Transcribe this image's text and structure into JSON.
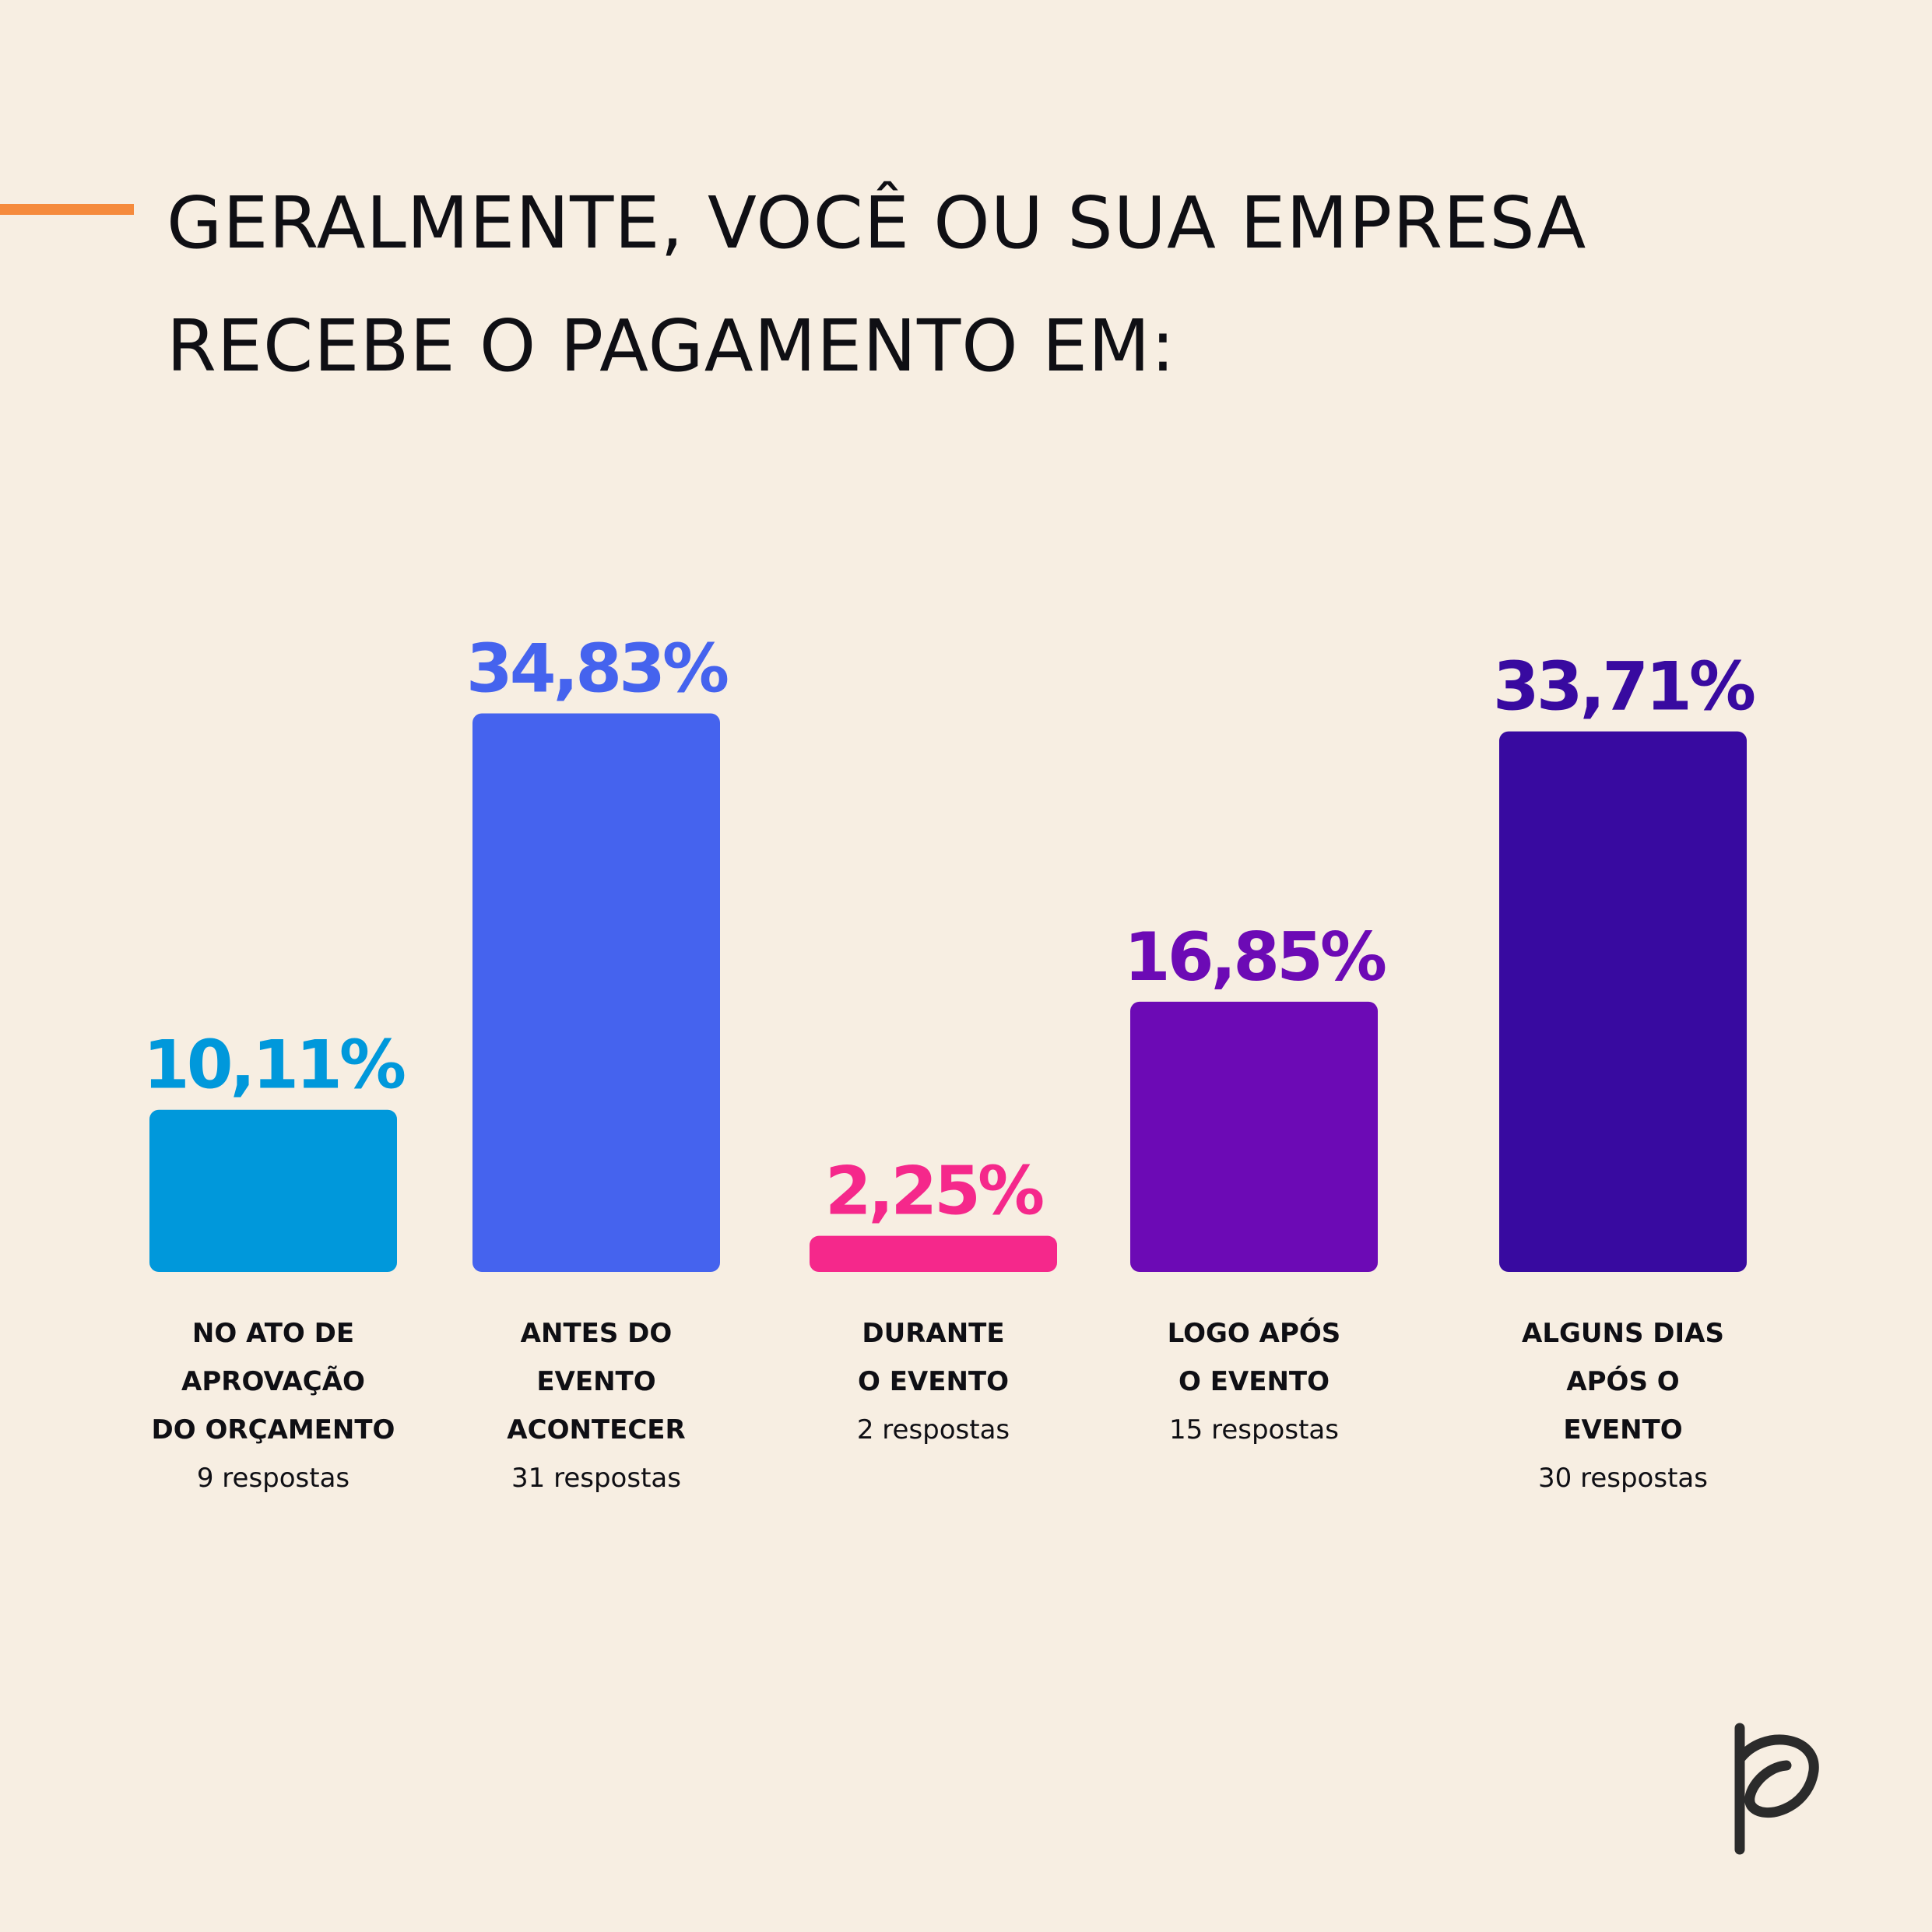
{
  "title_lines": [
    "GERALMENTE, VOCÊ OU SUA EMPRESA",
    "RECEBE O PAGAMENTO EM:"
  ],
  "chart_data": {
    "type": "bar",
    "categories": [
      [
        "NO ATO DE",
        "APROVAÇÃO",
        "DO ORÇAMENTO"
      ],
      [
        "ANTES DO",
        "EVENTO",
        "ACONTECER"
      ],
      [
        "DURANTE",
        "O EVENTO"
      ],
      [
        "LOGO APÓS",
        "O EVENTO"
      ],
      [
        "ALGUNS DIAS",
        "APÓS O",
        "EVENTO"
      ]
    ],
    "values": [
      10.11,
      34.83,
      2.25,
      16.85,
      33.71
    ],
    "value_labels": [
      "10,11%",
      "34,83%",
      "2,25%",
      "16,85%",
      "33,71%"
    ],
    "responses": [
      "9 respostas",
      "31 respostas",
      "2 respostas",
      "15 respostas",
      "30 respostas"
    ],
    "colors": [
      "#0098db",
      "#4563ee",
      "#f5288b",
      "#6c0ab5",
      "#380aa0"
    ],
    "ylim": [
      0,
      35
    ],
    "grid": false
  },
  "colors": {
    "background": "#f7eee2",
    "accent": "#f58a3c",
    "text": "#0f0f14",
    "logo": "#2b2b2b"
  },
  "logo": {
    "icon": "p-letter-logo"
  }
}
